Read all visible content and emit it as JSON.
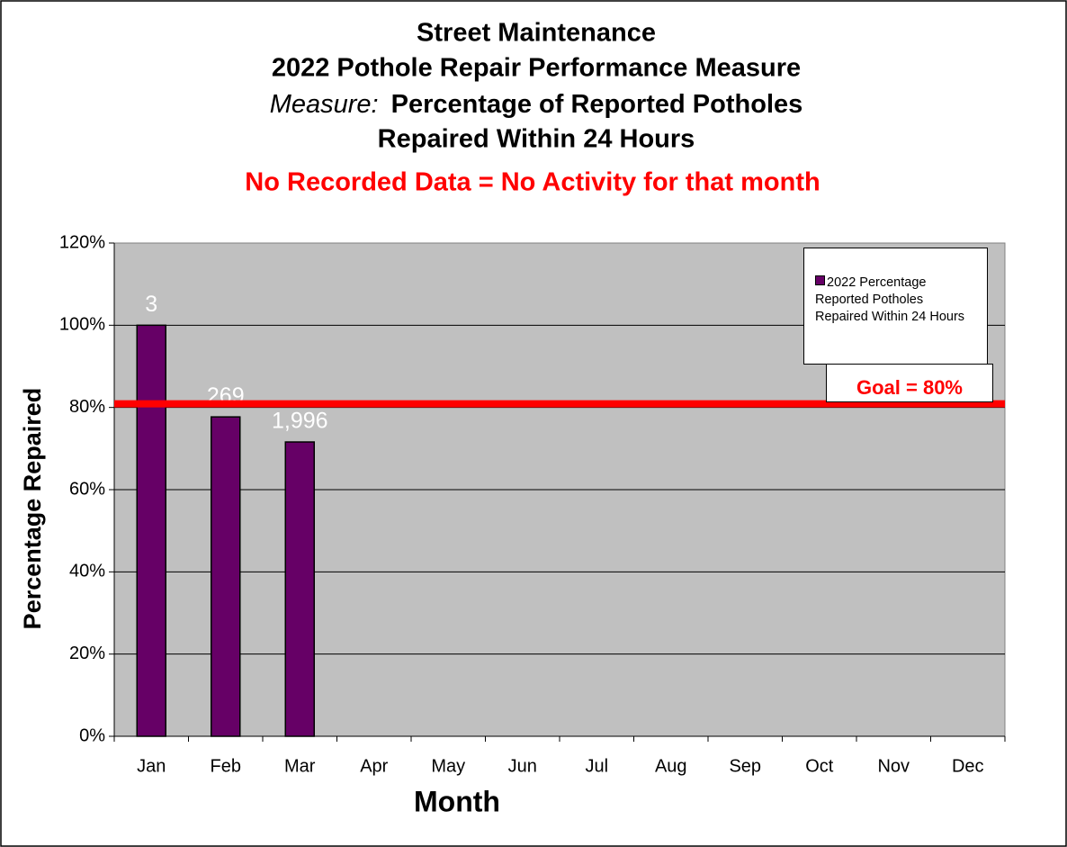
{
  "chart_data": {
    "type": "bar",
    "title_lines": [
      "Street Maintenance",
      "2022 Pothole Repair Performance Measure"
    ],
    "measure_prefix": "Measure:",
    "measure_lines": [
      "Percentage of Reported Potholes",
      "Repaired Within 24 Hours"
    ],
    "subtitle": "No Recorded Data = No Activity for that month",
    "x_label": "Month",
    "y_label": "Percentage Repaired",
    "categories": [
      "Jan",
      "Feb",
      "Mar",
      "Apr",
      "May",
      "Jun",
      "Jul",
      "Aug",
      "Sep",
      "Oct",
      "Nov",
      "Dec"
    ],
    "series": [
      {
        "name": "2022 Percentage Reported Potholes Repaired Within 24 Hours",
        "color": "#660066",
        "values": [
          100,
          77.7,
          71.6,
          null,
          null,
          null,
          null,
          null,
          null,
          null,
          null,
          null
        ],
        "bar_labels": [
          "3",
          "269",
          "1,996",
          null,
          null,
          null,
          null,
          null,
          null,
          null,
          null,
          null
        ]
      }
    ],
    "ylim": [
      0,
      120
    ],
    "yticks": [
      {
        "value": 0,
        "label": "0%"
      },
      {
        "value": 20,
        "label": "20%"
      },
      {
        "value": 40,
        "label": "40%"
      },
      {
        "value": 60,
        "label": "60%"
      },
      {
        "value": 80,
        "label": "80%"
      },
      {
        "value": 100,
        "label": "100%"
      },
      {
        "value": 120,
        "label": "120%"
      }
    ],
    "grid": true,
    "goal": {
      "value": 80,
      "label": "Goal = 80%",
      "color": "#ff0000"
    },
    "legend": "upper right"
  }
}
